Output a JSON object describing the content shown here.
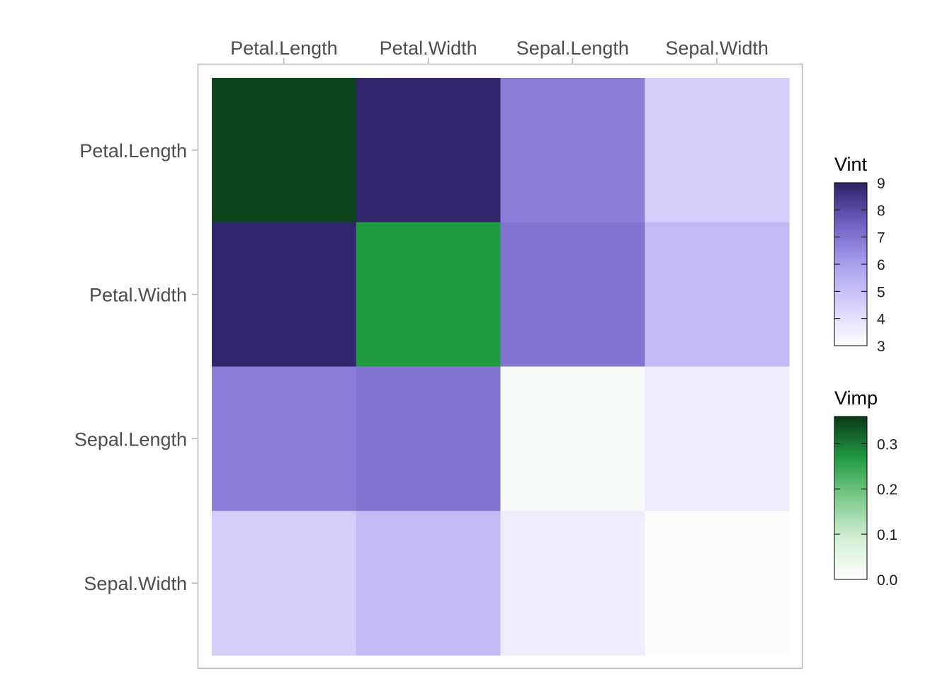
{
  "chart_data": {
    "type": "heatmap",
    "title": "",
    "xlabel": "",
    "ylabel": "",
    "variables": [
      "Petal.Length",
      "Petal.Width",
      "Sepal.Length",
      "Sepal.Width"
    ],
    "x_categories": [
      "Petal.Length",
      "Petal.Width",
      "Sepal.Length",
      "Sepal.Width"
    ],
    "y_categories": [
      "Petal.Length",
      "Petal.Width",
      "Sepal.Length",
      "Sepal.Width"
    ],
    "x_axis_position": "top",
    "vimp": {
      "Petal.Length": 0.35,
      "Petal.Width": 0.27,
      "Sepal.Length": 0.02,
      "Sepal.Width": 0.01
    },
    "vint": [
      {
        "row": "Petal.Length",
        "col": "Petal.Width",
        "value": 8.9
      },
      {
        "row": "Petal.Length",
        "col": "Sepal.Length",
        "value": 6.8
      },
      {
        "row": "Petal.Length",
        "col": "Sepal.Width",
        "value": 4.6
      },
      {
        "row": "Petal.Width",
        "col": "Petal.Length",
        "value": 8.9
      },
      {
        "row": "Petal.Width",
        "col": "Sepal.Length",
        "value": 7.0
      },
      {
        "row": "Petal.Width",
        "col": "Sepal.Width",
        "value": 5.2
      },
      {
        "row": "Sepal.Length",
        "col": "Petal.Length",
        "value": 6.8
      },
      {
        "row": "Sepal.Length",
        "col": "Petal.Width",
        "value": 7.0
      },
      {
        "row": "Sepal.Length",
        "col": "Sepal.Width",
        "value": 3.6
      },
      {
        "row": "Sepal.Width",
        "col": "Petal.Length",
        "value": 4.6
      },
      {
        "row": "Sepal.Width",
        "col": "Petal.Width",
        "value": 5.2
      },
      {
        "row": "Sepal.Width",
        "col": "Sepal.Length",
        "value": 3.6
      }
    ],
    "legends": [
      {
        "title": "Vint",
        "min": 3,
        "max": 9,
        "ticks": [
          3,
          4,
          5,
          6,
          7,
          8,
          9
        ],
        "tick_labels": [
          "3",
          "4",
          "5",
          "6",
          "7",
          "8",
          "9"
        ],
        "colors": [
          "#ffffff",
          "#d6d1fb",
          "#a9a0ee",
          "#6f60c4",
          "#2d2166"
        ]
      },
      {
        "title": "Vimp",
        "min": 0,
        "max": 0.36,
        "ticks": [
          0.0,
          0.1,
          0.2,
          0.3
        ],
        "tick_labels": [
          "0.0",
          "0.1",
          "0.2",
          "0.3"
        ],
        "colors": [
          "#ffffff",
          "#d4eed6",
          "#7ecb8a",
          "#1f9a41",
          "#0a3a16"
        ]
      }
    ],
    "grid": false,
    "legend_position": "right"
  }
}
